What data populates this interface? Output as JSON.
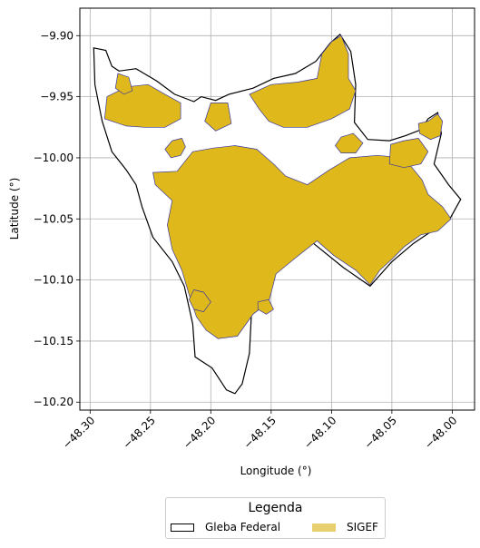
{
  "axes": {
    "xlabel": "Longitude (°)",
    "ylabel": "Latitude (°)",
    "x_ticks": [
      -48.3,
      -48.25,
      -48.2,
      -48.15,
      -48.1,
      -48.05,
      -48.0
    ],
    "x_tick_labels": [
      "−48.30",
      "−48.25",
      "−48.20",
      "−48.15",
      "−48.10",
      "−48.05",
      "−48.00"
    ],
    "y_ticks": [
      -9.9,
      -9.95,
      -10.0,
      -10.05,
      -10.1,
      -10.15,
      -10.2
    ],
    "y_tick_labels": [
      "−9.90",
      "−9.95",
      "−10.00",
      "−10.05",
      "−10.10",
      "−10.15",
      "−10.20"
    ],
    "xlim": [
      -48.3085,
      -47.9815
    ],
    "ylim": [
      -10.2065,
      -9.8775
    ],
    "grid": true
  },
  "legend": {
    "title": "Legenda",
    "placement": "bottom-center",
    "items": [
      {
        "label": "Gleba Federal",
        "fill": "#ffffff",
        "edge": "#000000"
      },
      {
        "label": "SIGEF",
        "fill": "#e8d070",
        "edge": "#e8d070"
      }
    ]
  },
  "colors": {
    "gleba_edge": "#000000",
    "sigef_fill": "#dfb81c",
    "sigef_edge": "#3a3aa0",
    "grid": "#b0b0b0"
  },
  "chart_data": {
    "type": "map",
    "xlabel": "Longitude (°)",
    "ylabel": "Latitude (°)",
    "layers": [
      {
        "name": "Gleba Federal",
        "style": "outline",
        "polygons": [
          [
            [
              -48.297,
              -9.91
            ],
            [
              -48.287,
              -9.912
            ],
            [
              -48.282,
              -9.925
            ],
            [
              -48.276,
              -9.929
            ],
            [
              -48.262,
              -9.927
            ],
            [
              -48.245,
              -9.937
            ],
            [
              -48.23,
              -9.948
            ],
            [
              -48.214,
              -9.954
            ],
            [
              -48.208,
              -9.95
            ],
            [
              -48.196,
              -9.953
            ],
            [
              -48.185,
              -9.948
            ],
            [
              -48.165,
              -9.943
            ],
            [
              -48.148,
              -9.935
            ],
            [
              -48.13,
              -9.931
            ],
            [
              -48.113,
              -9.921
            ],
            [
              -48.101,
              -9.906
            ],
            [
              -48.093,
              -9.899
            ],
            [
              -48.084,
              -9.913
            ],
            [
              -48.08,
              -9.94
            ],
            [
              -48.081,
              -9.971
            ],
            [
              -48.07,
              -9.985
            ],
            [
              -48.052,
              -9.986
            ],
            [
              -48.039,
              -9.982
            ],
            [
              -48.026,
              -9.977
            ],
            [
              -48.02,
              -9.968
            ],
            [
              -48.012,
              -9.963
            ],
            [
              -48.009,
              -9.98
            ],
            [
              -48.015,
              -10.005
            ],
            [
              -48.003,
              -10.022
            ],
            [
              -47.993,
              -10.034
            ],
            [
              -48.002,
              -10.05
            ],
            [
              -48.032,
              -10.07
            ],
            [
              -48.05,
              -10.085
            ],
            [
              -48.068,
              -10.105
            ],
            [
              -48.09,
              -10.09
            ],
            [
              -48.115,
              -10.07
            ],
            [
              -48.134,
              -10.08
            ],
            [
              -48.158,
              -10.094
            ],
            [
              -48.166,
              -10.12
            ],
            [
              -48.168,
              -10.16
            ],
            [
              -48.174,
              -10.185
            ],
            [
              -48.18,
              -10.193
            ],
            [
              -48.187,
              -10.19
            ],
            [
              -48.199,
              -10.172
            ],
            [
              -48.213,
              -10.163
            ],
            [
              -48.215,
              -10.136
            ],
            [
              -48.222,
              -10.105
            ],
            [
              -48.232,
              -10.085
            ],
            [
              -48.248,
              -10.065
            ],
            [
              -48.257,
              -10.04
            ],
            [
              -48.262,
              -10.022
            ],
            [
              -48.27,
              -10.01
            ],
            [
              -48.282,
              -9.995
            ],
            [
              -48.29,
              -9.97
            ],
            [
              -48.296,
              -9.94
            ],
            [
              -48.297,
              -9.91
            ]
          ]
        ]
      },
      {
        "name": "SIGEF",
        "style": "fill",
        "polygons": [
          [
            [
              -48.228,
              -10.011
            ],
            [
              -48.215,
              -9.995
            ],
            [
              -48.198,
              -9.992
            ],
            [
              -48.18,
              -9.99
            ],
            [
              -48.162,
              -9.993
            ],
            [
              -48.148,
              -10.005
            ],
            [
              -48.138,
              -10.015
            ],
            [
              -48.12,
              -10.022
            ],
            [
              -48.102,
              -10.01
            ],
            [
              -48.085,
              -10.0
            ],
            [
              -48.062,
              -9.998
            ],
            [
              -48.04,
              -10.0
            ],
            [
              -48.025,
              -10.018
            ],
            [
              -48.02,
              -10.03
            ],
            [
              -48.008,
              -10.04
            ],
            [
              -48.001,
              -10.05
            ],
            [
              -48.012,
              -10.06
            ],
            [
              -48.026,
              -10.063
            ],
            [
              -48.04,
              -10.073
            ],
            [
              -48.05,
              -10.083
            ],
            [
              -48.06,
              -10.092
            ],
            [
              -48.068,
              -10.104
            ],
            [
              -48.08,
              -10.092
            ],
            [
              -48.098,
              -10.08
            ],
            [
              -48.112,
              -10.068
            ],
            [
              -48.13,
              -10.082
            ],
            [
              -48.146,
              -10.095
            ],
            [
              -48.152,
              -10.118
            ],
            [
              -48.165,
              -10.128
            ],
            [
              -48.178,
              -10.146
            ],
            [
              -48.194,
              -10.148
            ],
            [
              -48.204,
              -10.141
            ],
            [
              -48.212,
              -10.13
            ],
            [
              -48.218,
              -10.112
            ],
            [
              -48.224,
              -10.092
            ],
            [
              -48.232,
              -10.075
            ],
            [
              -48.236,
              -10.055
            ],
            [
              -48.232,
              -10.035
            ],
            [
              -48.246,
              -10.022
            ],
            [
              -48.248,
              -10.012
            ],
            [
              -48.228,
              -10.011
            ]
          ],
          [
            [
              -48.112,
              -9.935
            ],
            [
              -48.108,
              -9.915
            ],
            [
              -48.1,
              -9.905
            ],
            [
              -48.092,
              -9.9
            ],
            [
              -48.086,
              -9.915
            ],
            [
              -48.086,
              -9.935
            ],
            [
              -48.08,
              -9.945
            ],
            [
              -48.085,
              -9.96
            ],
            [
              -48.1,
              -9.968
            ],
            [
              -48.12,
              -9.975
            ],
            [
              -48.14,
              -9.975
            ],
            [
              -48.152,
              -9.97
            ],
            [
              -48.16,
              -9.96
            ],
            [
              -48.168,
              -9.948
            ],
            [
              -48.15,
              -9.94
            ],
            [
              -48.128,
              -9.938
            ],
            [
              -48.112,
              -9.935
            ]
          ],
          [
            [
              -48.286,
              -9.95
            ],
            [
              -48.27,
              -9.942
            ],
            [
              -48.252,
              -9.94
            ],
            [
              -48.238,
              -9.948
            ],
            [
              -48.225,
              -9.955
            ],
            [
              -48.225,
              -9.968
            ],
            [
              -48.238,
              -9.975
            ],
            [
              -48.255,
              -9.975
            ],
            [
              -48.27,
              -9.974
            ],
            [
              -48.288,
              -9.968
            ],
            [
              -48.286,
              -9.95
            ]
          ],
          [
            [
              -48.277,
              -9.931
            ],
            [
              -48.268,
              -9.934
            ],
            [
              -48.265,
              -9.945
            ],
            [
              -48.272,
              -9.948
            ],
            [
              -48.279,
              -9.943
            ],
            [
              -48.277,
              -9.931
            ]
          ],
          [
            [
              -48.051,
              -9.989
            ],
            [
              -48.04,
              -9.986
            ],
            [
              -48.028,
              -9.984
            ],
            [
              -48.02,
              -9.995
            ],
            [
              -48.026,
              -10.005
            ],
            [
              -48.04,
              -10.008
            ],
            [
              -48.052,
              -10.005
            ],
            [
              -48.051,
              -9.989
            ]
          ],
          [
            [
              -48.012,
              -9.964
            ],
            [
              -48.02,
              -9.97
            ],
            [
              -48.028,
              -9.972
            ],
            [
              -48.027,
              -9.98
            ],
            [
              -48.018,
              -9.985
            ],
            [
              -48.01,
              -9.982
            ],
            [
              -48.008,
              -9.97
            ],
            [
              -48.012,
              -9.964
            ]
          ],
          [
            [
              -48.224,
              -9.984
            ],
            [
              -48.232,
              -9.986
            ],
            [
              -48.238,
              -9.993
            ],
            [
              -48.233,
              -10.0
            ],
            [
              -48.225,
              -9.998
            ],
            [
              -48.221,
              -9.991
            ],
            [
              -48.224,
              -9.984
            ]
          ],
          [
            [
              -48.092,
              -9.983
            ],
            [
              -48.082,
              -9.98
            ],
            [
              -48.074,
              -9.988
            ],
            [
              -48.08,
              -9.996
            ],
            [
              -48.092,
              -9.996
            ],
            [
              -48.097,
              -9.99
            ],
            [
              -48.092,
              -9.983
            ]
          ],
          [
            [
              -48.2,
              -9.955
            ],
            [
              -48.186,
              -9.955
            ],
            [
              -48.183,
              -9.972
            ],
            [
              -48.196,
              -9.978
            ],
            [
              -48.205,
              -9.97
            ],
            [
              -48.2,
              -9.955
            ]
          ],
          [
            [
              -48.214,
              -10.108
            ],
            [
              -48.206,
              -10.11
            ],
            [
              -48.2,
              -10.118
            ],
            [
              -48.206,
              -10.126
            ],
            [
              -48.214,
              -10.124
            ],
            [
              -48.218,
              -10.116
            ],
            [
              -48.214,
              -10.108
            ]
          ],
          [
            [
              -48.161,
              -10.118
            ],
            [
              -48.152,
              -10.116
            ],
            [
              -48.148,
              -10.124
            ],
            [
              -48.154,
              -10.128
            ],
            [
              -48.161,
              -10.124
            ],
            [
              -48.161,
              -10.118
            ]
          ]
        ]
      }
    ]
  }
}
